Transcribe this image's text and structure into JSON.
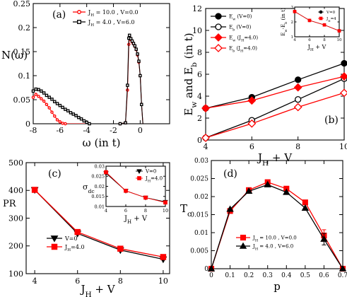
{
  "colors": {
    "black": "#000000",
    "red": "#ff0000",
    "background": "#ffffff"
  },
  "charts": [
    {
      "id": "a",
      "type": "line",
      "panel_label": "(a)",
      "xlabel": "ω (in t)",
      "ylabel": "N(ω)",
      "xlim": [
        -8,
        2.2
      ],
      "ylim": [
        0,
        0.25
      ],
      "xticks": [
        -8,
        -6,
        -4,
        -2,
        0
      ],
      "xtick_labels": [
        "-8",
        "-6",
        "-4",
        "-2",
        "0"
      ],
      "yticks": [
        0,
        0.05,
        0.1,
        0.15,
        0.2,
        0.25
      ],
      "ytick_labels": [
        "0",
        "0.05",
        "0.1",
        "0.15",
        "0.2",
        "0.25"
      ],
      "legend_position": "top-left",
      "series": [
        {
          "name": "J_H = 10.0 , V=0.0",
          "color": "#ff0000",
          "marker": "circle-open",
          "points": [
            [
              -8.0,
              0.055
            ],
            [
              -7.8,
              0.061
            ],
            [
              -7.6,
              0.057
            ],
            [
              -7.4,
              0.052
            ],
            [
              -7.2,
              0.047
            ],
            [
              -7.0,
              0.04
            ],
            [
              -6.8,
              0.033
            ],
            [
              -6.6,
              0.024
            ],
            [
              -6.4,
              0.016
            ],
            [
              -6.2,
              0.008
            ],
            [
              -6.0,
              0.004
            ],
            [
              -5.8,
              0.001
            ],
            [
              -5.6,
              0.0
            ],
            [
              -1.5,
              0.0
            ],
            [
              -1.1,
              0.002
            ],
            [
              -0.95,
              0.07
            ],
            [
              -0.85,
              0.165
            ],
            [
              -0.8,
              0.18
            ],
            [
              -0.7,
              0.175
            ],
            [
              -0.6,
              0.17
            ],
            [
              -0.5,
              0.166
            ],
            [
              -0.4,
              0.161
            ],
            [
              -0.3,
              0.154
            ],
            [
              -0.2,
              0.143
            ],
            [
              -0.1,
              0.128
            ],
            [
              0.0,
              0.1
            ],
            [
              0.1,
              0.04
            ],
            [
              0.2,
              0.0
            ],
            [
              2.2,
              0.0
            ]
          ]
        },
        {
          "name": "J_H = 4.0 , V=6.0",
          "color": "#000000",
          "marker": "square-open",
          "points": [
            [
              -8.0,
              0.068
            ],
            [
              -7.8,
              0.072
            ],
            [
              -7.6,
              0.071
            ],
            [
              -7.4,
              0.068
            ],
            [
              -7.2,
              0.064
            ],
            [
              -7.0,
              0.059
            ],
            [
              -6.8,
              0.055
            ],
            [
              -6.6,
              0.051
            ],
            [
              -6.4,
              0.046
            ],
            [
              -6.2,
              0.042
            ],
            [
              -6.0,
              0.038
            ],
            [
              -5.8,
              0.034
            ],
            [
              -5.6,
              0.03
            ],
            [
              -5.4,
              0.027
            ],
            [
              -5.2,
              0.023
            ],
            [
              -5.0,
              0.02
            ],
            [
              -4.8,
              0.017
            ],
            [
              -4.6,
              0.013
            ],
            [
              -4.4,
              0.01
            ],
            [
              -4.2,
              0.006
            ],
            [
              -4.0,
              0.003
            ],
            [
              -3.8,
              0.0
            ],
            [
              -1.5,
              0.0
            ],
            [
              -1.1,
              0.002
            ],
            [
              -0.95,
              0.08
            ],
            [
              -0.85,
              0.178
            ],
            [
              -0.8,
              0.184
            ],
            [
              -0.7,
              0.177
            ],
            [
              -0.6,
              0.172
            ],
            [
              -0.5,
              0.167
            ],
            [
              -0.4,
              0.162
            ],
            [
              -0.3,
              0.155
            ],
            [
              -0.2,
              0.145
            ],
            [
              -0.1,
              0.13
            ],
            [
              0.0,
              0.1
            ],
            [
              0.1,
              0.04
            ],
            [
              0.2,
              0.0
            ],
            [
              2.2,
              0.0
            ]
          ]
        }
      ]
    },
    {
      "id": "b",
      "type": "line",
      "panel_label": "(b)",
      "xlabel": "J_H + V",
      "ylabel": "E_w and E_b (in t)",
      "xlim": [
        4,
        10
      ],
      "ylim": [
        0,
        12
      ],
      "xticks": [
        4,
        6,
        8,
        10
      ],
      "xtick_labels": [
        "4",
        "6",
        "8",
        "10"
      ],
      "yticks": [
        0,
        2,
        4,
        6,
        8,
        10,
        12
      ],
      "ytick_labels": [
        "0",
        "2",
        "4",
        "6",
        "8",
        "10",
        "12"
      ],
      "legend_position": "top-left",
      "series": [
        {
          "name": "E_w (V=0)",
          "color": "#000000",
          "marker": "circle-filled",
          "points": [
            [
              4,
              2.9
            ],
            [
              6,
              3.9
            ],
            [
              8,
              5.5
            ],
            [
              10,
              7.0
            ]
          ]
        },
        {
          "name": "E_b (V=0)",
          "color": "#000000",
          "marker": "circle-open",
          "points": [
            [
              4,
              0.2
            ],
            [
              6,
              1.8
            ],
            [
              8,
              3.7
            ],
            [
              10,
              5.6
            ]
          ]
        },
        {
          "name": "E_w (J_H=4.0)",
          "color": "#ff0000",
          "marker": "diamond-filled",
          "points": [
            [
              4,
              2.9
            ],
            [
              6,
              3.6
            ],
            [
              8,
              4.8
            ],
            [
              10,
              5.8
            ]
          ]
        },
        {
          "name": "E_b (J_H=4.0)",
          "color": "#ff0000",
          "marker": "diamond-open",
          "points": [
            [
              4,
              0.2
            ],
            [
              6,
              1.5
            ],
            [
              8,
              3.0
            ],
            [
              10,
              4.3
            ]
          ]
        }
      ],
      "inset": {
        "xlabel": "J_H + V",
        "ylabel": "E_w-E_b (in t)",
        "xlim": [
          4,
          10
        ],
        "ylim": [
          1,
          3
        ],
        "xticks": [
          4,
          6,
          8,
          10
        ],
        "xtick_labels": [
          "4",
          "6",
          "8",
          "10"
        ],
        "yticks": [
          1,
          2,
          3
        ],
        "ytick_labels": [
          "1",
          "2",
          "3"
        ],
        "legend_position": "top-right",
        "series": [
          {
            "name": "V=0",
            "color": "#000000",
            "marker": "circle-filled",
            "points": [
              [
                4,
                2.7
              ],
              [
                6,
                2.1
              ],
              [
                8,
                1.8
              ],
              [
                10,
                1.4
              ]
            ]
          },
          {
            "name": "J_H=4",
            "color": "#ff0000",
            "marker": "square-filled",
            "points": [
              [
                4,
                2.7
              ],
              [
                6,
                2.1
              ],
              [
                8,
                1.8
              ],
              [
                10,
                1.4
              ]
            ]
          }
        ]
      }
    },
    {
      "id": "c",
      "type": "line",
      "panel_label": "(c)",
      "xlabel": "J_H + V",
      "ylabel": "PR",
      "xlim": [
        3.6,
        10.3
      ],
      "ylim": [
        100,
        500
      ],
      "xticks": [
        4,
        6,
        8,
        10
      ],
      "xtick_labels": [
        "4",
        "6",
        "8",
        "10"
      ],
      "yticks": [
        100,
        200,
        300,
        400,
        500
      ],
      "ytick_labels": [
        "100",
        "200",
        "300",
        "400",
        "500"
      ],
      "legend_position": "bottom-left",
      "series": [
        {
          "name": "V=0",
          "color": "#000000",
          "marker": "triangle-down-filled",
          "points": [
            [
              4,
              402
            ],
            [
              6,
              245
            ],
            [
              8,
              185
            ],
            [
              10,
              152
            ]
          ]
        },
        {
          "name": "J_H=4.0",
          "color": "#ff0000",
          "marker": "square-filled",
          "points": [
            [
              4,
              402
            ],
            [
              6,
              250
            ],
            [
              8,
              190
            ],
            [
              10,
              160
            ]
          ]
        }
      ],
      "inset": {
        "xlabel": "J_H + V",
        "ylabel": "σ_dc",
        "xlim": [
          4,
          10
        ],
        "ylim": [
          0.01,
          0.03
        ],
        "xticks": [
          4,
          6,
          8,
          10
        ],
        "xtick_labels": [
          "4",
          "6",
          "8",
          "10"
        ],
        "yticks": [
          0.01,
          0.015,
          0.02,
          0.025,
          0.03
        ],
        "ytick_labels": [
          "0.01",
          "0.015",
          "0.02",
          "0.025",
          "0.03"
        ],
        "legend_position": "top-right",
        "series": [
          {
            "name": "V=0",
            "color": "#000000",
            "marker": "triangle-down-filled",
            "points": [
              [
                4,
                0.0265
              ],
              [
                6,
                0.0178
              ],
              [
                8,
                0.0144
              ],
              [
                10,
                0.0123
              ]
            ]
          },
          {
            "name": "J_H=4.0",
            "color": "#ff0000",
            "marker": "square-filled",
            "points": [
              [
                4,
                0.027
              ],
              [
                6,
                0.0178
              ],
              [
                8,
                0.0144
              ],
              [
                10,
                0.012
              ]
            ]
          }
        ]
      }
    },
    {
      "id": "d",
      "type": "line",
      "panel_label": "(d)",
      "xlabel": "p",
      "ylabel": "T_c",
      "xlim": [
        0,
        0.7
      ],
      "ylim": [
        0,
        0.03
      ],
      "xticks": [
        0,
        0.1,
        0.2,
        0.3,
        0.4,
        0.5,
        0.6,
        0.7
      ],
      "xtick_labels": [
        "0",
        "0.1",
        "0.2",
        "0.3",
        "0.4",
        "0.5",
        "0.6",
        "0.7"
      ],
      "yticks": [
        0,
        0.005,
        0.01,
        0.015,
        0.02,
        0.025,
        0.03
      ],
      "ytick_labels": [
        "0",
        "0.005",
        "0.01",
        "0.015",
        "0.02",
        "0.025",
        "0.03"
      ],
      "legend_position": "bottom-center",
      "series": [
        {
          "name": "J_H = 10.0 , V=0.0",
          "color": "#ff0000",
          "marker": "square-filled",
          "points": [
            [
              0,
              0
            ],
            [
              0.1,
              0.016
            ],
            [
              0.2,
              0.0218
            ],
            [
              0.3,
              0.024
            ],
            [
              0.4,
              0.0222
            ],
            [
              0.5,
              0.0184
            ],
            [
              0.6,
              0.0092
            ],
            [
              0.7,
              0
            ]
          ],
          "errors": [
            0,
            0,
            0,
            0,
            0,
            0,
            0.0016,
            0
          ]
        },
        {
          "name": "J_H = 4.0 , V=6.0",
          "color": "#000000",
          "marker": "triangle-up-filled",
          "points": [
            [
              0,
              0
            ],
            [
              0.1,
              0.0165
            ],
            [
              0.2,
              0.0215
            ],
            [
              0.3,
              0.0233
            ],
            [
              0.4,
              0.0212
            ],
            [
              0.5,
              0.0168
            ],
            [
              0.6,
              0.0082
            ],
            [
              0.7,
              0
            ]
          ],
          "errors": [
            0,
            0,
            0,
            0,
            0,
            0,
            0.0016,
            0
          ]
        }
      ]
    }
  ]
}
